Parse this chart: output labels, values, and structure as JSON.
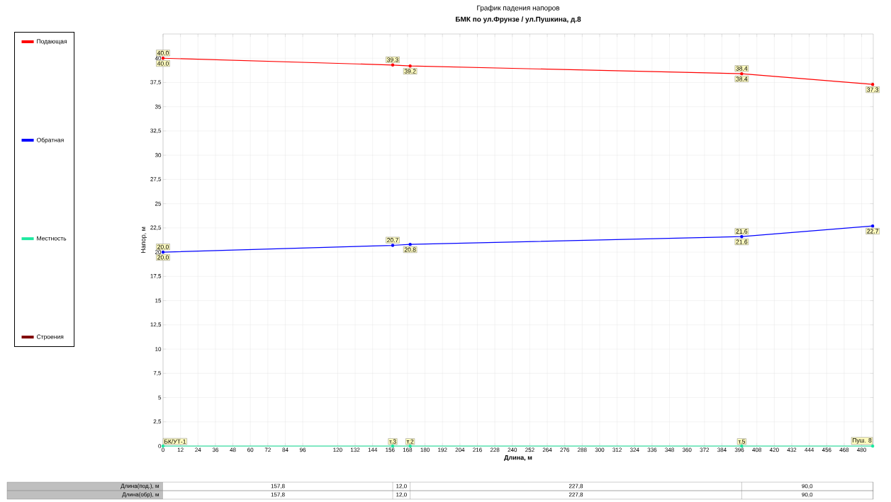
{
  "chart_data": {
    "type": "line",
    "title": "График падения напоров",
    "subtitle": "БМК по ул.Фрунзе / ул.Пушкина, д.8",
    "xlabel": "Длина, м",
    "ylabel": "Напор, м",
    "x": [
      0,
      157.8,
      169.8,
      397.6,
      487.6
    ],
    "series": [
      {
        "name": "Подающая",
        "color": "#ff0000",
        "values": [
          40.0,
          39.3,
          39.2,
          38.4,
          37.3
        ],
        "value_labels": [
          "40.0",
          "39.3",
          "39.2",
          "38.4",
          "37.3"
        ]
      },
      {
        "name": "Обратная",
        "color": "#0000ff",
        "values": [
          20.0,
          20.7,
          20.8,
          21.6,
          22.7
        ],
        "value_labels": [
          "20.0",
          "20.7",
          "20.8",
          "21.6",
          "22.7"
        ]
      },
      {
        "name": "Местность",
        "color": "#1de9a0",
        "values": [
          0,
          0,
          0,
          0,
          0
        ]
      },
      {
        "name": "Строения",
        "color": "#800000",
        "values": [
          null,
          null,
          null,
          null,
          null
        ]
      }
    ],
    "xlim": [
      0,
      488
    ],
    "xticks": [
      0,
      12,
      24,
      36,
      48,
      60,
      72,
      84,
      96,
      120,
      132,
      144,
      156,
      168,
      180,
      192,
      204,
      216,
      228,
      240,
      252,
      264,
      276,
      288,
      300,
      312,
      324,
      336,
      348,
      360,
      372,
      384,
      396,
      408,
      420,
      432,
      444,
      456,
      468,
      480
    ],
    "ylim": [
      0,
      42.5
    ],
    "yticks": [
      0,
      {
        "value": 2.5,
        "label": "2,5"
      },
      5,
      {
        "value": 7.5,
        "label": "7,5"
      },
      10,
      {
        "value": 12.5,
        "label": "12,5"
      },
      15,
      {
        "value": 17.5,
        "label": "17,5"
      },
      20,
      {
        "value": 22.5,
        "label": "22,5"
      },
      25,
      {
        "value": 27.5,
        "label": "27,5"
      },
      30,
      {
        "value": 32.5,
        "label": "32,5"
      },
      35,
      {
        "value": 37.5,
        "label": "37,5"
      },
      40
    ],
    "grid": true,
    "legend": "left",
    "marker": "circle",
    "annotations": [
      "Длина(под.), м",
      "157,8",
      "12,0",
      "227,8",
      "90,0",
      "Длина(обр), м",
      "157,8",
      "12,0",
      "227,8",
      "90,0",
      {
        "text": "БК/УТ-1",
        "x": 0,
        "y": 0
      },
      {
        "text": "т.3",
        "x": 157.8,
        "y": 0
      },
      {
        "text": "т.2",
        "x": 169.8,
        "y": 0
      },
      {
        "text": "т.5",
        "x": 397.6,
        "y": 0
      },
      {
        "text": "Пуш. 8",
        "x": 487.6,
        "y": 0
      },
      {
        "text": "40.0",
        "x": 0,
        "y": 40.0
      },
      {
        "text": "38.4",
        "x": 397.6,
        "y": 38.4
      },
      {
        "text": "20.0",
        "x": 0,
        "y": 20.0
      },
      {
        "text": "21.6",
        "x": 397.6,
        "y": 21.6
      }
    ]
  }
}
